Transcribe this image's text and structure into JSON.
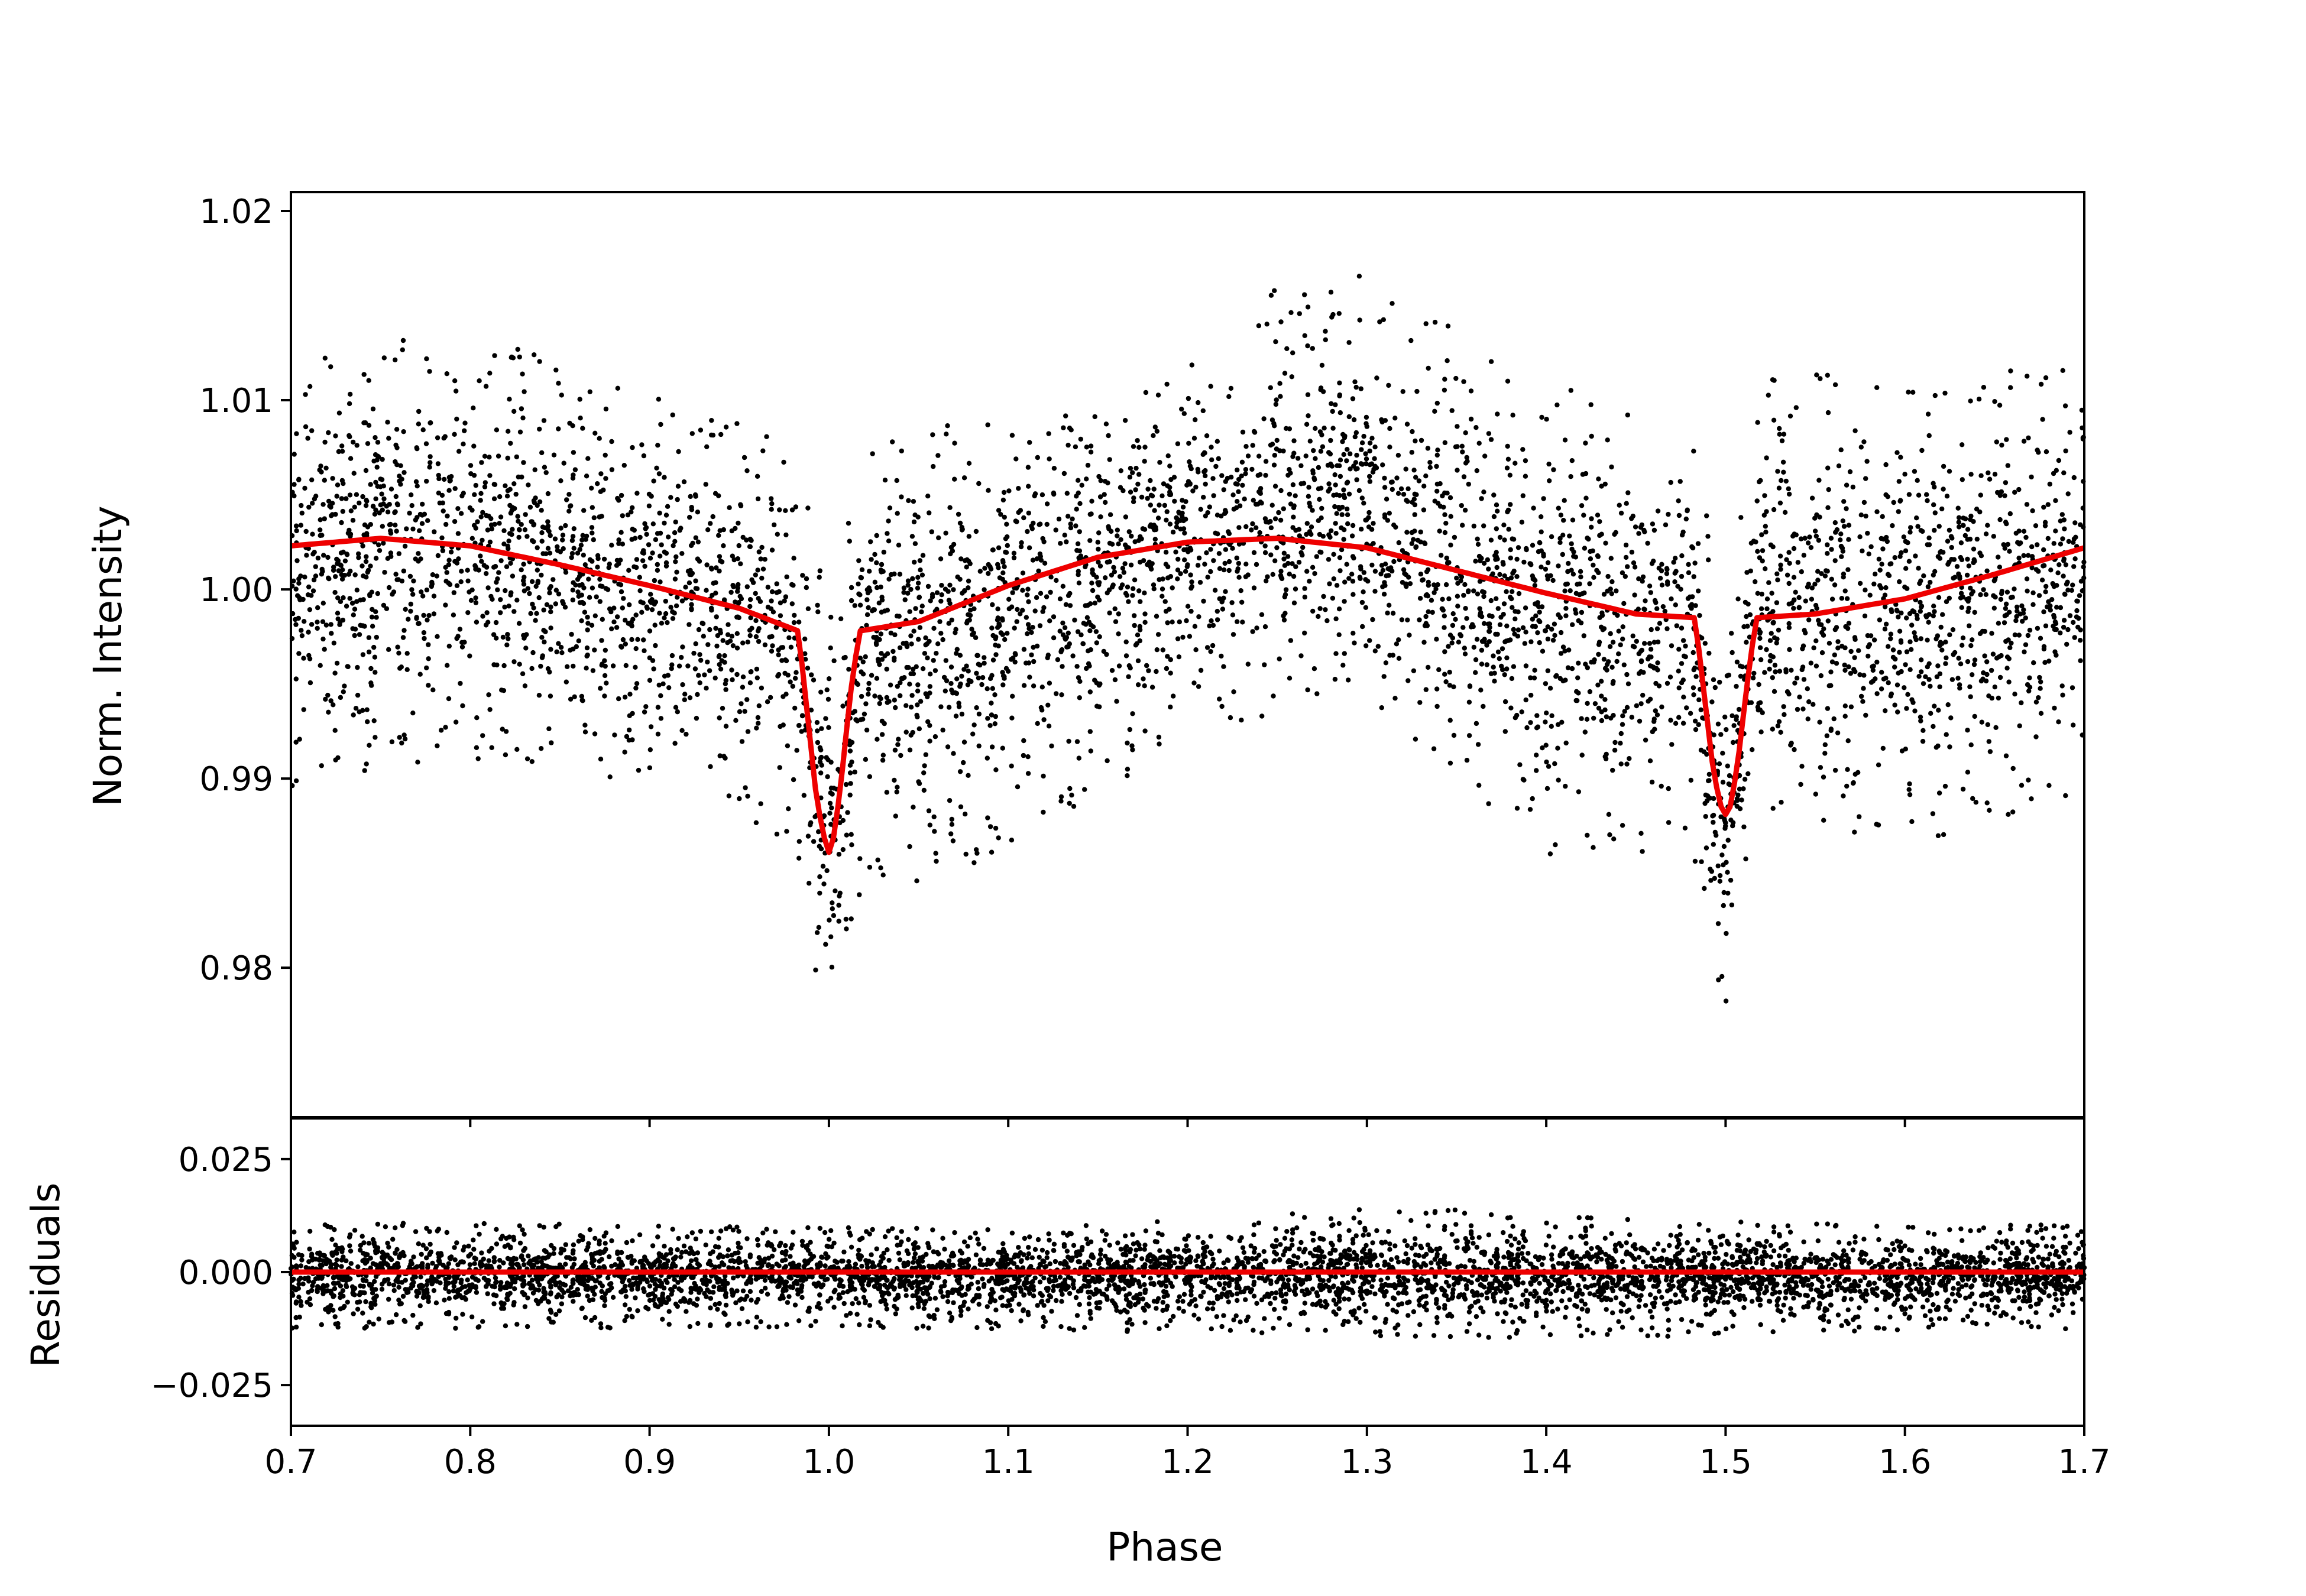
{
  "colors": {
    "points": "#000000",
    "model": "#ee0000",
    "axes": "#000000",
    "background": "#ffffff"
  },
  "chart_data": [
    {
      "type": "scatter",
      "panel": "main",
      "title": "",
      "xlabel": "",
      "ylabel": "Norm. Intensity",
      "xlim": [
        0.7,
        1.7
      ],
      "ylim": [
        0.9721,
        1.021
      ],
      "yticks": [
        0.98,
        0.99,
        1.0,
        1.01,
        1.02
      ],
      "ytick_labels": [
        "0.98",
        "0.99",
        "1.00",
        "1.01",
        "1.02"
      ],
      "xticks": [
        0.7,
        0.8,
        0.9,
        1.0,
        1.1,
        1.2,
        1.3,
        1.4,
        1.5,
        1.6,
        1.7
      ],
      "grid": false,
      "legend": "none",
      "series": [
        {
          "kind": "model-line",
          "x": [
            0.7,
            0.75,
            0.8,
            0.85,
            0.9,
            0.95,
            0.983,
            0.988,
            0.993,
            0.997,
            1.0,
            1.003,
            1.007,
            1.012,
            1.017,
            1.05,
            1.1,
            1.15,
            1.2,
            1.25,
            1.3,
            1.35,
            1.4,
            1.45,
            1.483,
            1.488,
            1.493,
            1.497,
            1.5,
            1.503,
            1.507,
            1.512,
            1.517,
            1.55,
            1.6,
            1.65,
            1.7
          ],
          "y": [
            1.0023,
            1.0027,
            1.0023,
            1.0013,
            1.0002,
            0.999,
            0.9978,
            0.9934,
            0.989,
            0.987,
            0.9861,
            0.987,
            0.99,
            0.9945,
            0.9978,
            0.9983,
            1.0002,
            1.0017,
            1.0025,
            1.0027,
            1.0022,
            1.001,
            0.9998,
            0.9987,
            0.9985,
            0.9945,
            0.9905,
            0.9886,
            0.9881,
            0.9886,
            0.991,
            0.995,
            0.9985,
            0.9987,
            0.9995,
            1.0008,
            1.0022
          ]
        },
        {
          "kind": "observations-envelope",
          "x": [
            0.7,
            0.75,
            0.8,
            0.85,
            0.9,
            0.95,
            0.98,
            1.0,
            1.02,
            1.05,
            1.1,
            1.15,
            1.2,
            1.25,
            1.28,
            1.3,
            1.35,
            1.4,
            1.45,
            1.48,
            1.5,
            1.52,
            1.55,
            1.6,
            1.65,
            1.7
          ],
          "upper": [
            1.012,
            1.013,
            1.0137,
            1.0122,
            1.0105,
            1.009,
            1.0085,
            0.999,
            1.0075,
            1.0085,
            1.009,
            1.0105,
            1.0135,
            1.016,
            1.0172,
            1.0165,
            1.014,
            1.011,
            1.0095,
            1.0085,
            0.999,
            1.011,
            1.0117,
            1.011,
            1.0115,
            1.0125
          ],
          "lower": [
            0.9895,
            0.9905,
            0.9908,
            0.9905,
            0.9895,
            0.9882,
            0.9865,
            0.974,
            0.985,
            0.9845,
            0.986,
            0.989,
            0.992,
            0.9935,
            0.994,
            0.9935,
            0.99,
            0.9845,
            0.985,
            0.987,
            0.9773,
            0.9885,
            0.9875,
            0.9865,
            0.9875,
            0.9895
          ]
        }
      ]
    },
    {
      "type": "scatter",
      "panel": "residuals",
      "title": "",
      "xlabel": "Phase",
      "ylabel": "Residuals",
      "xlim": [
        0.7,
        1.7
      ],
      "ylim": [
        -0.034,
        0.034
      ],
      "yticks": [
        -0.025,
        0.0,
        0.025
      ],
      "ytick_labels": [
        "−0.025",
        "0.000",
        "0.025"
      ],
      "xticks": [
        0.7,
        0.8,
        0.9,
        1.0,
        1.1,
        1.2,
        1.3,
        1.4,
        1.5,
        1.6,
        1.7
      ],
      "xtick_labels": [
        "0.7",
        "0.8",
        "0.9",
        "1.0",
        "1.1",
        "1.2",
        "1.3",
        "1.4",
        "1.5",
        "1.6",
        "1.7"
      ],
      "grid": false,
      "legend": "none",
      "series": [
        {
          "kind": "model-line",
          "x": [
            0.7,
            1.7
          ],
          "y": [
            0.0,
            0.0
          ]
        },
        {
          "kind": "observations-envelope",
          "x": [
            0.7,
            0.8,
            0.9,
            1.0,
            1.1,
            1.2,
            1.25,
            1.3,
            1.35,
            1.4,
            1.45,
            1.5,
            1.6,
            1.7
          ],
          "upper": [
            0.0105,
            0.011,
            0.0105,
            0.01,
            0.0095,
            0.0115,
            0.013,
            0.014,
            0.014,
            0.013,
            0.012,
            0.0115,
            0.0105,
            0.0105
          ],
          "lower": [
            -0.0125,
            -0.0125,
            -0.0125,
            -0.012,
            -0.013,
            -0.0135,
            -0.0135,
            -0.0145,
            -0.015,
            -0.0155,
            -0.015,
            -0.0135,
            -0.013,
            -0.0125
          ]
        }
      ]
    }
  ]
}
